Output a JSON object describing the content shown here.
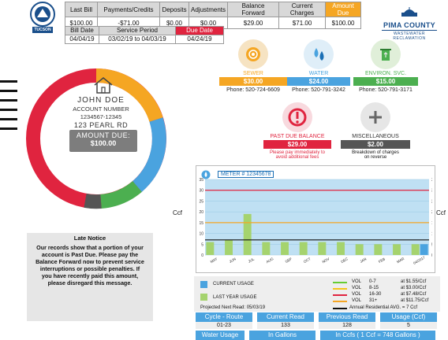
{
  "summary": {
    "headers": [
      "Last Bill",
      "Payments/Credits",
      "Deposits",
      "Adjustments",
      "Balance Forward",
      "Current Charges",
      "Amount Due"
    ],
    "values": [
      "$100.00",
      "-$71.00",
      "$0.00",
      "$0.00",
      "$29.00",
      "$71.00",
      "$100.00"
    ]
  },
  "dates": {
    "headers": [
      "Bill Date",
      "Service Period",
      "Due Date"
    ],
    "values": [
      "04/04/19",
      "03/02/19 to 04/03/19",
      "04/24/19"
    ]
  },
  "logo": {
    "tucson": "TUCSON"
  },
  "pima": {
    "name": "PIMA COUNTY",
    "sub": "WASTEWATER RECLAMATION"
  },
  "account": {
    "name": "JOHN DOE",
    "number_label": "ACCOUNT NUMBER",
    "number": "1234567-12345",
    "address": "123 PEARL RD",
    "amount_label": "AMOUNT DUE:",
    "amount": "$100.00"
  },
  "services": [
    {
      "label": "SEWER",
      "amount": "$30.00",
      "phone": "Phone: 520-724-6609",
      "color": "#f5a623"
    },
    {
      "label": "WATER",
      "amount": "$24.00",
      "phone": "Phone: 520-791-3242",
      "color": "#4aa3df"
    },
    {
      "label": "ENVIRON. SVC.",
      "amount": "$15.00",
      "phone": "Phone: 520-791-3171",
      "color": "#4caf50"
    }
  ],
  "past_due": {
    "label": "PAST DUE BALANCE",
    "amount": "$29.00",
    "note1": "Please pay immediately to",
    "note2": "avoid additional fees",
    "color": "#e0243f"
  },
  "misc": {
    "label": "MISCELLANEOUS",
    "amount": "$2.00",
    "note1": "Breakdown of charges",
    "note2": "on reverse",
    "color": "#555555"
  },
  "late_notice": {
    "title": "Late Notice",
    "lines": [
      "Our records show that a portion of your",
      "account is Past Due. Please pay the",
      "Balance Forward now to prevent service",
      "interruptions or possible penalties. If",
      "you have recently paid this amount,",
      "please disregard this message."
    ]
  },
  "meter": "METER # 12345678",
  "chart_data": {
    "type": "bar",
    "categories": [
      "MAY",
      "JUN",
      "JUL",
      "AUG",
      "SEP",
      "OCT",
      "NOV",
      "DEC",
      "JAN",
      "FEB",
      "MAR",
      "04/2017"
    ],
    "series": [
      {
        "name": "CURRENT USAGE",
        "values": [
          0,
          0,
          0,
          0,
          0,
          0,
          0,
          0,
          0,
          0,
          0,
          5
        ]
      },
      {
        "name": "LAST YEAR USAGE",
        "values": [
          6,
          7,
          19,
          6,
          6,
          6,
          6,
          6,
          5,
          5,
          5,
          5
        ]
      }
    ],
    "ylabel": "Ccf",
    "ylim": [
      0,
      35
    ],
    "yticks": [
      0,
      5,
      10,
      15,
      20,
      25,
      30,
      35
    ],
    "thresholds": [
      {
        "y": 30,
        "color": "#e0243f"
      },
      {
        "y": 15,
        "color": "#f5a623"
      },
      {
        "y": 7,
        "color": "#111111"
      }
    ],
    "grid": true
  },
  "legend": {
    "current": "CURRENT USAGE",
    "last_year": "LAST YEAR USAGE",
    "tiers": [
      {
        "vol": "VOL",
        "range": "0-7",
        "rate": "at $1.55/Ccf",
        "color": "#66cc33"
      },
      {
        "vol": "VOL",
        "range": "8-15",
        "rate": "at $3.00/Ccf",
        "color": "#f5c518"
      },
      {
        "vol": "VOL",
        "range": "16-30",
        "rate": "at $7.48/Ccf",
        "color": "#e0243f"
      },
      {
        "vol": "VOL",
        "range": "31+",
        "rate": "at $11.75/Ccf",
        "color": "#f5a623"
      }
    ],
    "avg": "Annual Residential AVG. = 7 Ccf",
    "next_read": "Projected Next Read: 05/03/19"
  },
  "stats": {
    "headers": [
      "Cycle - Route",
      "Current Read",
      "Previous Read",
      "Usage (Ccf)"
    ],
    "values": [
      "01-23",
      "133",
      "128",
      "5"
    ],
    "headers2": [
      "Water Usage",
      "In Gallons",
      "In Ccfs ( 1 Ccf = 748 Gallons )"
    ]
  }
}
